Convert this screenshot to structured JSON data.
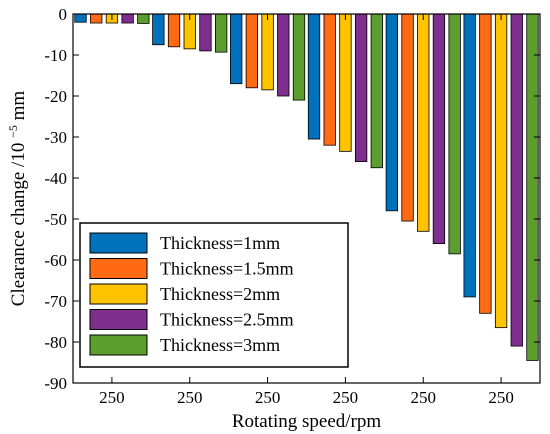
{
  "chart_data": {
    "type": "bar",
    "categories": [
      "250",
      "250",
      "250",
      "250",
      "250",
      "250"
    ],
    "xlabel": "Rotating speed/rpm",
    "ylabel": {
      "main": "Clearance change /10",
      "sup": "−5",
      "unit": "mm"
    },
    "ylim": [
      -90,
      0
    ],
    "yticks": [
      0,
      -10,
      -20,
      -30,
      -40,
      -50,
      -60,
      -70,
      -80,
      -90
    ],
    "grid": false,
    "legend_position": "bottom-left",
    "series": [
      {
        "name": "Thickness=1mm",
        "color": "#0072BD",
        "values": [
          -2,
          -7.5,
          -17,
          -30.5,
          -48,
          -69
        ]
      },
      {
        "name": "Thickness=1.5mm",
        "color": "#FF6A13",
        "values": [
          -2.2,
          -8,
          -18,
          -32,
          -50.5,
          -73
        ]
      },
      {
        "name": "Thickness=2mm",
        "color": "#FFC300",
        "values": [
          -2.2,
          -8.5,
          -18.5,
          -33.5,
          -53,
          -76.5
        ]
      },
      {
        "name": "Thickness=2.5mm",
        "color": "#7E2F8E",
        "values": [
          -2.2,
          -9,
          -20,
          -36,
          -56,
          -81
        ]
      },
      {
        "name": "Thickness=3mm",
        "color": "#5B9E2E",
        "values": [
          -2.3,
          -9.3,
          -21,
          -37.5,
          -58.5,
          -84.5
        ]
      }
    ]
  }
}
